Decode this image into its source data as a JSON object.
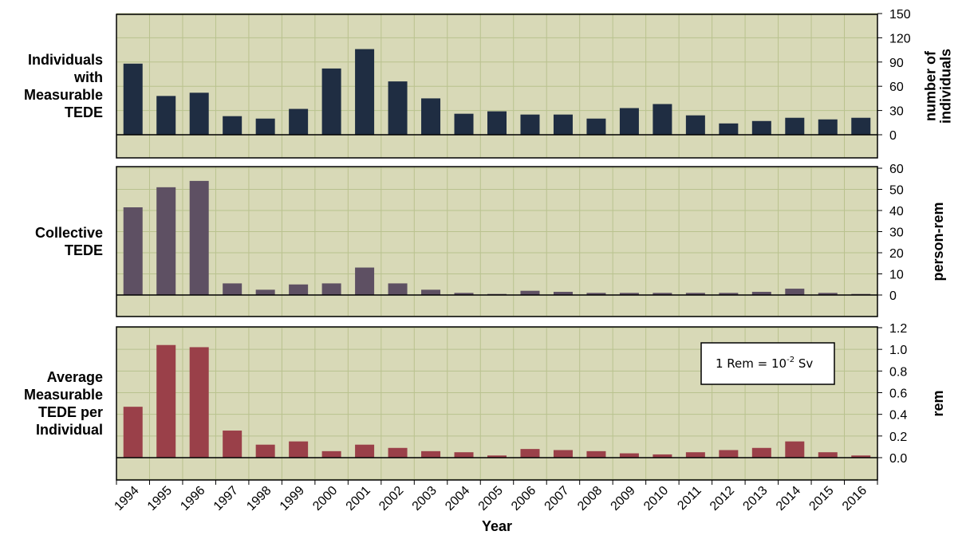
{
  "chart_data": {
    "type": "bar",
    "xlabel": "Year",
    "categories": [
      "1994",
      "1995",
      "1996",
      "1997",
      "1998",
      "1999",
      "2000",
      "2001",
      "2002",
      "2003",
      "2004",
      "2005",
      "2006",
      "2007",
      "2008",
      "2009",
      "2010",
      "2011",
      "2012",
      "2013",
      "2014",
      "2015",
      "2016"
    ],
    "panels": [
      {
        "label_lines": [
          "Individuals",
          "with",
          "Measurable",
          "TEDE"
        ],
        "ylabel_lines": [
          "number of",
          "individuals"
        ],
        "ylim": [
          0,
          150
        ],
        "yticks": [
          0,
          30,
          60,
          90,
          120,
          150
        ],
        "tick_labels": [
          "0",
          "30",
          "60",
          "90",
          "120",
          "150"
        ],
        "color": "#1f2d42",
        "values": [
          88,
          48,
          52,
          23,
          20,
          32,
          82,
          106,
          66,
          45,
          26,
          29,
          25,
          25,
          20,
          33,
          38,
          24,
          14,
          17,
          21,
          19,
          21
        ]
      },
      {
        "label_lines": [
          "Collective",
          "TEDE"
        ],
        "ylabel_lines": [
          "person-rem"
        ],
        "ylim": [
          0,
          60
        ],
        "yticks": [
          0,
          10,
          20,
          30,
          40,
          50,
          60
        ],
        "tick_labels": [
          "0",
          "10",
          "20",
          "30",
          "40",
          "50",
          "60"
        ],
        "color": "#5e5063",
        "values": [
          41.5,
          51,
          54,
          5.5,
          2.5,
          5,
          5.5,
          13,
          5.5,
          2.5,
          1,
          0.5,
          2,
          1.5,
          1,
          1,
          1,
          1,
          1,
          1.5,
          3,
          1,
          0.5
        ]
      },
      {
        "label_lines": [
          "Average",
          "Measurable",
          "TEDE per",
          "Individual"
        ],
        "ylabel_lines": [
          "rem"
        ],
        "ylim": [
          0,
          1.2
        ],
        "yticks": [
          0,
          0.2,
          0.4,
          0.6,
          0.8,
          1.0,
          1.2
        ],
        "tick_labels": [
          "0.0",
          "0.2",
          "0.4",
          "0.6",
          "0.8",
          "1.0",
          "1.2"
        ],
        "color": "#9a4049",
        "values": [
          0.47,
          1.04,
          1.02,
          0.25,
          0.12,
          0.15,
          0.06,
          0.12,
          0.09,
          0.06,
          0.05,
          0.02,
          0.08,
          0.07,
          0.06,
          0.04,
          0.03,
          0.05,
          0.07,
          0.09,
          0.15,
          0.05,
          0.02
        ],
        "annotation": {
          "base": "1 Rem = 10",
          "sup": "-2",
          "suffix": " Sv"
        }
      }
    ],
    "grid": true,
    "background": "#d8d9b7",
    "grid_color": "#b9c28e"
  }
}
